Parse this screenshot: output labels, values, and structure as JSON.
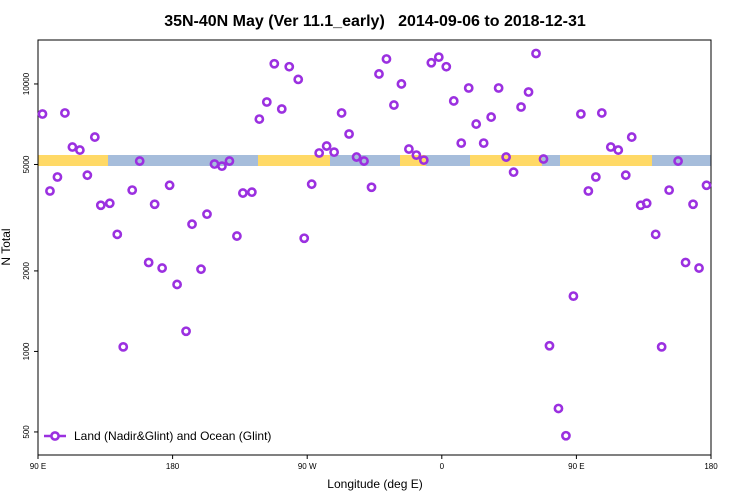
{
  "chart_data": {
    "type": "scatter",
    "title": "35N-40N May (Ver 11.1_early)   2014-09-06 to 2018-12-31",
    "xlabel": "Longitude (deg E)",
    "ylabel": "N Total",
    "xlim": [
      90,
      540
    ],
    "xticks": [
      {
        "value": 90,
        "label": "90 E"
      },
      180,
      {
        "value": 270,
        "label": "90 W"
      },
      {
        "value": 360,
        "label": "0"
      },
      {
        "value": 450,
        "label": "90 E"
      },
      {
        "value": 540,
        "label": "180"
      }
    ],
    "ylim": [
      410,
      14600
    ],
    "ylog": true,
    "yticks": [
      500,
      1000,
      2000,
      5000,
      10000
    ],
    "legend": "lower left",
    "series": [
      {
        "name": "Land (Nadir&Glint) and Ocean (Glint)",
        "color": "#9b30e0",
        "x": [
          93,
          98,
          103,
          108,
          113,
          118,
          123,
          128,
          132,
          138,
          143,
          147,
          153,
          158,
          164,
          168,
          173,
          178,
          183,
          189,
          193,
          199,
          203,
          208,
          213,
          218,
          223,
          227,
          233,
          238,
          243,
          248,
          253,
          258,
          264,
          268,
          273,
          278,
          283,
          288,
          293,
          298,
          303,
          308,
          313,
          318,
          323,
          328,
          333,
          338,
          343,
          348,
          353,
          358,
          363,
          368,
          373,
          378,
          383,
          388,
          393,
          398,
          403,
          408,
          413,
          418,
          423,
          428,
          432,
          438,
          443,
          448,
          453,
          458,
          463,
          467,
          473,
          478,
          483,
          487,
          493,
          497,
          503,
          507,
          512,
          518,
          523,
          528,
          532,
          537
        ],
        "values": [
          7720,
          3980,
          4490,
          7790,
          5810,
          5660,
          4560,
          6330,
          3520,
          3580,
          2740,
          1040,
          4010,
          5150,
          2150,
          3550,
          2050,
          4180,
          1780,
          1190,
          2990,
          2030,
          3260,
          5020,
          4930,
          5150,
          2700,
          3910,
          3940,
          7390,
          8560,
          11900,
          8060,
          11600,
          10400,
          2650,
          4220,
          5520,
          5860,
          5560,
          7790,
          6500,
          5330,
          5150,
          4110,
          10900,
          12400,
          8340,
          10000,
          5710,
          5420,
          5190,
          12000,
          12600,
          11600,
          8640,
          6010,
          9660,
          7080,
          6010,
          7520,
          9660,
          5330,
          4680,
          8200,
          9330,
          13000,
          5240,
          1050,
          612,
          484,
          1610,
          7720,
          3980,
          4490,
          7790,
          5810,
          5660,
          4560,
          6330,
          3520,
          3580,
          2740,
          1040,
          4010,
          5150,
          2150,
          3550,
          2050,
          4180
        ]
      }
    ]
  }
}
